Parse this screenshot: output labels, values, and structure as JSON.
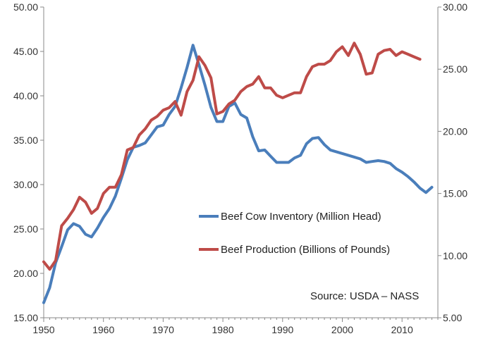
{
  "chart_data": {
    "type": "line",
    "title": "",
    "xlabel": "",
    "ylabel": "",
    "y2label": "",
    "xlim": [
      1950,
      2016
    ],
    "ylim": [
      15,
      50
    ],
    "y2lim": [
      5,
      30
    ],
    "x_ticks": [
      "1950",
      "1960",
      "1970",
      "1980",
      "1990",
      "2000",
      "2010"
    ],
    "y_ticks": [
      "15.00",
      "20.00",
      "25.00",
      "30.00",
      "35.00",
      "40.00",
      "45.00",
      "50.00"
    ],
    "y2_ticks": [
      "5.00",
      "10.00",
      "15.00",
      "20.00",
      "25.00",
      "30.00"
    ],
    "grid": false,
    "legend_position": "lower-right",
    "annotation": "Source: USDA – NASS",
    "series": [
      {
        "name": "Beef Cow Inventory (Million Head)",
        "axis": "left",
        "color": "#4a7ebb",
        "x": [
          1950,
          1951,
          1952,
          1953,
          1954,
          1955,
          1956,
          1957,
          1958,
          1959,
          1960,
          1961,
          1962,
          1963,
          1964,
          1965,
          1966,
          1967,
          1968,
          1969,
          1970,
          1971,
          1972,
          1973,
          1974,
          1975,
          1976,
          1977,
          1978,
          1979,
          1980,
          1981,
          1982,
          1983,
          1984,
          1985,
          1986,
          1987,
          1988,
          1989,
          1990,
          1991,
          1992,
          1993,
          1994,
          1995,
          1996,
          1997,
          1998,
          1999,
          2000,
          2001,
          2002,
          2003,
          2004,
          2005,
          2006,
          2007,
          2008,
          2009,
          2010,
          2011,
          2012,
          2013,
          2014,
          2015
        ],
        "values": [
          16.7,
          18.4,
          21.2,
          23.0,
          24.9,
          25.6,
          25.3,
          24.4,
          24.1,
          25.1,
          26.3,
          27.3,
          28.7,
          30.7,
          32.8,
          34.2,
          34.4,
          34.7,
          35.6,
          36.5,
          36.7,
          37.9,
          38.8,
          40.9,
          43.2,
          45.7,
          43.5,
          41.2,
          38.7,
          37.1,
          37.1,
          38.8,
          39.2,
          37.9,
          37.5,
          35.4,
          33.8,
          33.9,
          33.2,
          32.5,
          32.5,
          32.5,
          33.0,
          33.3,
          34.6,
          35.2,
          35.3,
          34.5,
          33.9,
          33.7,
          33.5,
          33.3,
          33.1,
          32.9,
          32.5,
          32.6,
          32.7,
          32.6,
          32.4,
          31.8,
          31.4,
          30.9,
          30.3,
          29.6,
          29.1,
          29.7
        ]
      },
      {
        "name": "Beef Production (Billions of Pounds)",
        "axis": "right",
        "color": "#be4b48",
        "x": [
          1950,
          1951,
          1952,
          1953,
          1954,
          1955,
          1956,
          1957,
          1958,
          1959,
          1960,
          1961,
          1962,
          1963,
          1964,
          1965,
          1966,
          1967,
          1968,
          1969,
          1970,
          1971,
          1972,
          1973,
          1974,
          1975,
          1976,
          1977,
          1978,
          1979,
          1980,
          1981,
          1982,
          1983,
          1984,
          1985,
          1986,
          1987,
          1988,
          1989,
          1990,
          1991,
          1992,
          1993,
          1994,
          1995,
          1996,
          1997,
          1998,
          1999,
          2000,
          2001,
          2002,
          2003,
          2004,
          2005,
          2006,
          2007,
          2008,
          2009,
          2010,
          2011,
          2012,
          2013
        ],
        "values": [
          9.5,
          8.9,
          9.6,
          12.4,
          13.0,
          13.7,
          14.7,
          14.3,
          13.4,
          13.8,
          15.0,
          15.5,
          15.5,
          16.5,
          18.5,
          18.7,
          19.7,
          20.2,
          20.9,
          21.2,
          21.7,
          21.9,
          22.4,
          21.3,
          23.2,
          24.1,
          26.0,
          25.3,
          24.3,
          21.4,
          21.6,
          22.2,
          22.5,
          23.2,
          23.6,
          23.8,
          24.4,
          23.5,
          23.5,
          22.9,
          22.7,
          22.9,
          23.1,
          23.1,
          24.4,
          25.2,
          25.4,
          25.4,
          25.7,
          26.4,
          26.8,
          26.1,
          27.1,
          26.2,
          24.6,
          24.7,
          26.2,
          26.5,
          26.6,
          26.1,
          26.4,
          26.2,
          26.0,
          25.8
        ]
      }
    ]
  }
}
